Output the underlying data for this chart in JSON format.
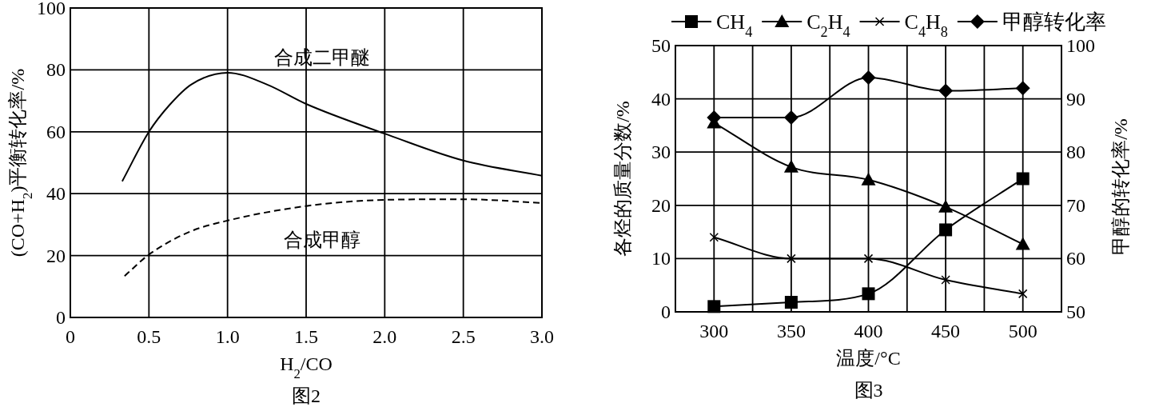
{
  "chart_data": [
    {
      "type": "line",
      "title": "图2",
      "xlabel": "H$_{2}$/CO",
      "ylabel": "(CO+H$_{2}$)平衡转化率/%",
      "xlim": [
        0,
        3
      ],
      "ylim": [
        0,
        100
      ],
      "xticks": [
        0,
        0.5,
        {
          "value": 1,
          "label": "1.0"
        },
        1.5,
        {
          "value": 2,
          "label": "2.0"
        },
        2.5,
        {
          "value": 3,
          "label": "3.0"
        }
      ],
      "yticks": [
        0,
        20,
        40,
        60,
        80,
        100
      ],
      "grid": true,
      "legend": false,
      "marker": "none",
      "series": [
        {
          "name": "合成二甲醚",
          "color": "#000000",
          "line_style": "solid",
          "x": [
            0.33,
            0.5,
            0.63,
            0.77,
            1.0,
            1.25,
            1.5,
            2.0,
            2.5,
            3.0
          ],
          "values": [
            44,
            60,
            68.6,
            75.3,
            79.1,
            75.3,
            69,
            59.4,
            50.7,
            45.8
          ]
        },
        {
          "name": "合成甲醇",
          "color": "#000000",
          "line_style": "dashed",
          "x": [
            0.345,
            0.5,
            0.75,
            1.0,
            1.5,
            2.0,
            2.5,
            3.0
          ],
          "values": [
            13.4,
            20.3,
            27.5,
            31.3,
            36,
            38,
            38.2,
            37
          ]
        }
      ]
    },
    {
      "type": "line",
      "title": "图3",
      "xlabel": "温度/°C",
      "ylabel": "各烃的质量分数/%",
      "y2label": "甲醇的转化率/%",
      "xlim": [
        275,
        525
      ],
      "ylim": [
        0,
        50
      ],
      "y2lim": [
        50,
        100
      ],
      "xticks": [
        300,
        {
          "value": 325,
          "label": null
        },
        350,
        {
          "value": 375,
          "label": null
        },
        400,
        {
          "value": 425,
          "label": null
        },
        450,
        {
          "value": 475,
          "label": null
        },
        500
      ],
      "yticks": [
        0,
        10,
        20,
        30,
        40,
        50
      ],
      "y2ticks": [
        50,
        60,
        70,
        80,
        90,
        100
      ],
      "grid": true,
      "legend": "top",
      "x": [
        300,
        350,
        400,
        450,
        500
      ],
      "series": [
        {
          "name": "CH$_{4}$",
          "color": "#000000",
          "marker": "square",
          "values": [
            1,
            1.8,
            3.4,
            15.4,
            25
          ]
        },
        {
          "name": "C$_{2}$H$_{4}$",
          "color": "#000000",
          "marker": "triangle",
          "values": [
            35.5,
            27.2,
            24.8,
            19.7,
            12.7
          ]
        },
        {
          "name": "C$_{4}$H$_{8}$",
          "color": "#000000",
          "marker": "cross",
          "values": [
            14,
            10,
            10,
            6,
            3.4
          ]
        },
        {
          "name": "甲醇转化率",
          "color": "#000000",
          "marker": "diamond",
          "axis": "y2",
          "values": [
            86.5,
            86.5,
            94,
            91.5,
            92
          ]
        }
      ]
    }
  ]
}
